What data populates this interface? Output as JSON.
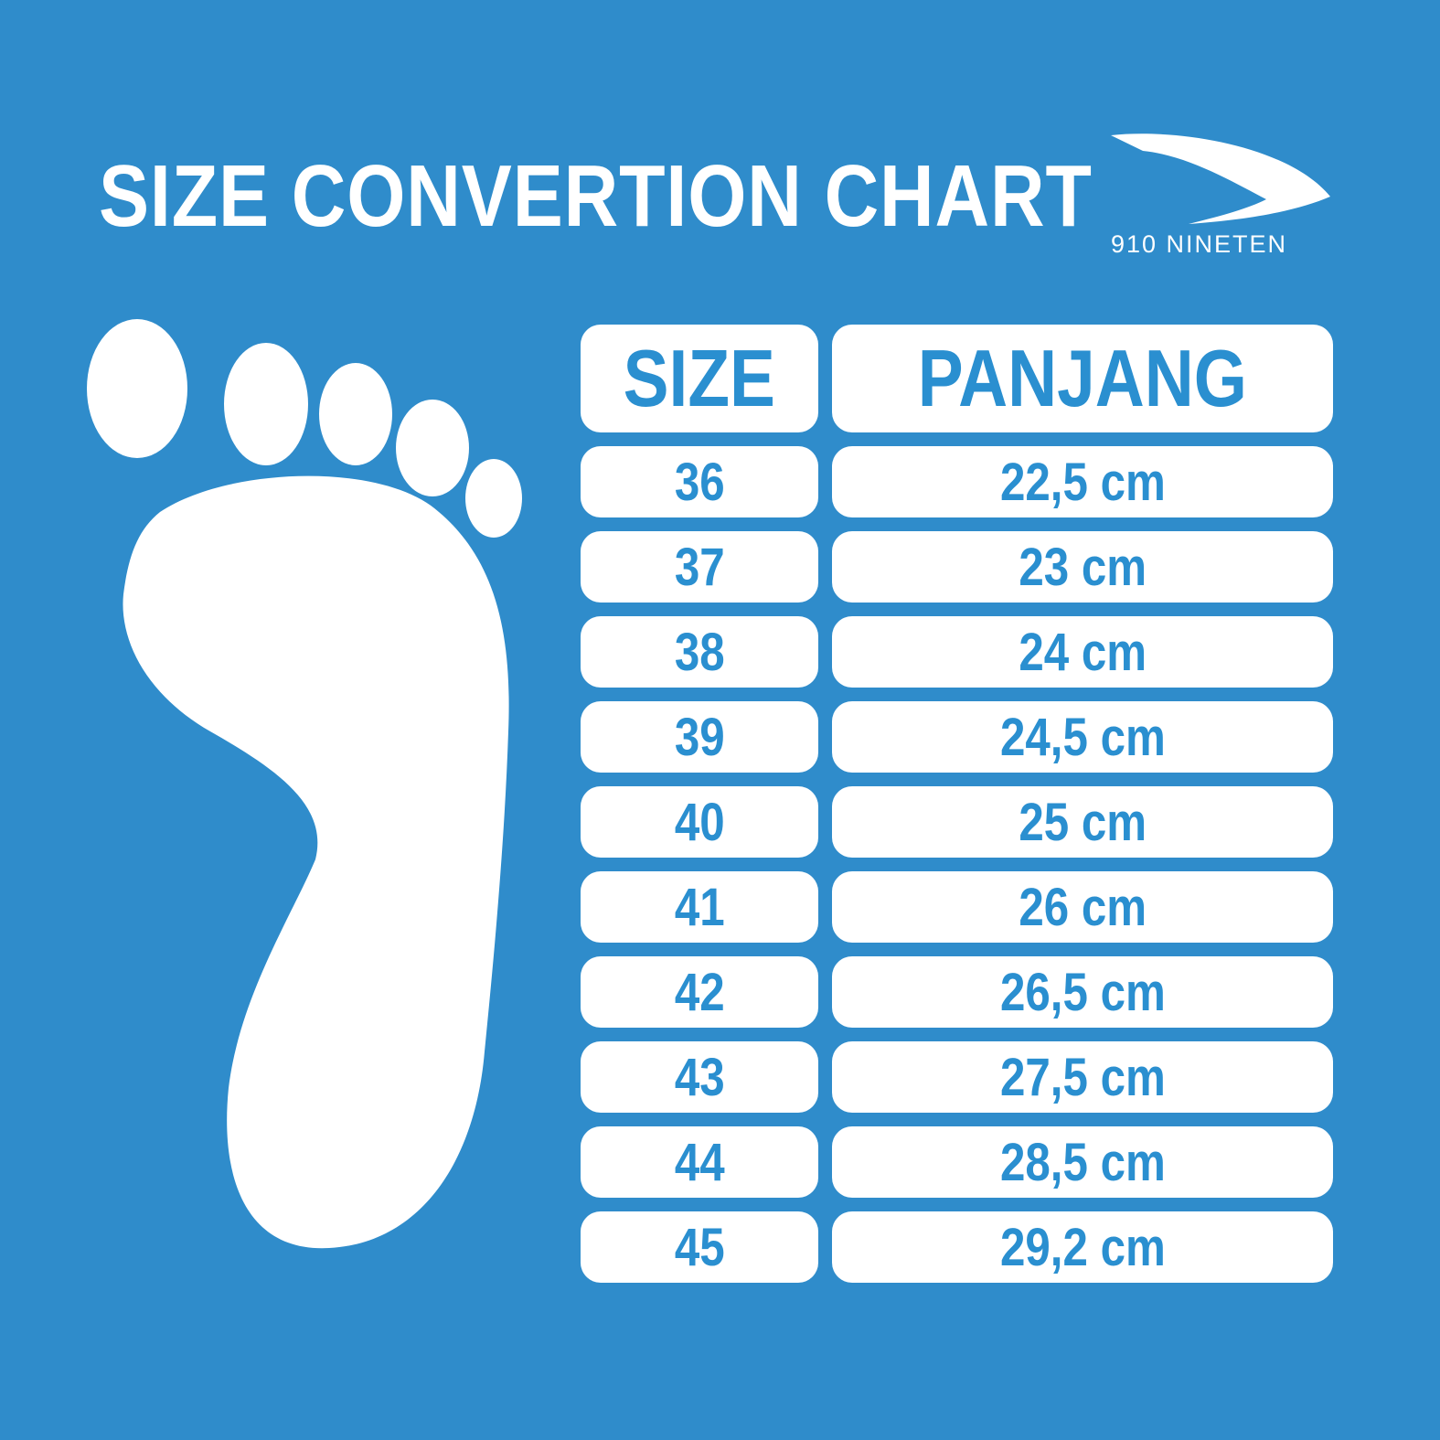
{
  "title": "SIZE CONVERTION CHART",
  "brand": {
    "logo_text": "910 NINETEN",
    "logo_icon": "swoosh-logo"
  },
  "colors": {
    "background": "#2f8ccb",
    "text_accent": "#2a8fd0",
    "cell": "#ffffff"
  },
  "table": {
    "headers": [
      "SIZE",
      "PANJANG"
    ],
    "rows": [
      [
        "36",
        "22,5 cm"
      ],
      [
        "37",
        "23 cm"
      ],
      [
        "38",
        "24 cm"
      ],
      [
        "39",
        "24,5 cm"
      ],
      [
        "40",
        "25 cm"
      ],
      [
        "41",
        "26 cm"
      ],
      [
        "42",
        "26,5 cm"
      ],
      [
        "43",
        "27,5 cm"
      ],
      [
        "44",
        "28,5 cm"
      ],
      [
        "45",
        "29,2 cm"
      ]
    ]
  }
}
